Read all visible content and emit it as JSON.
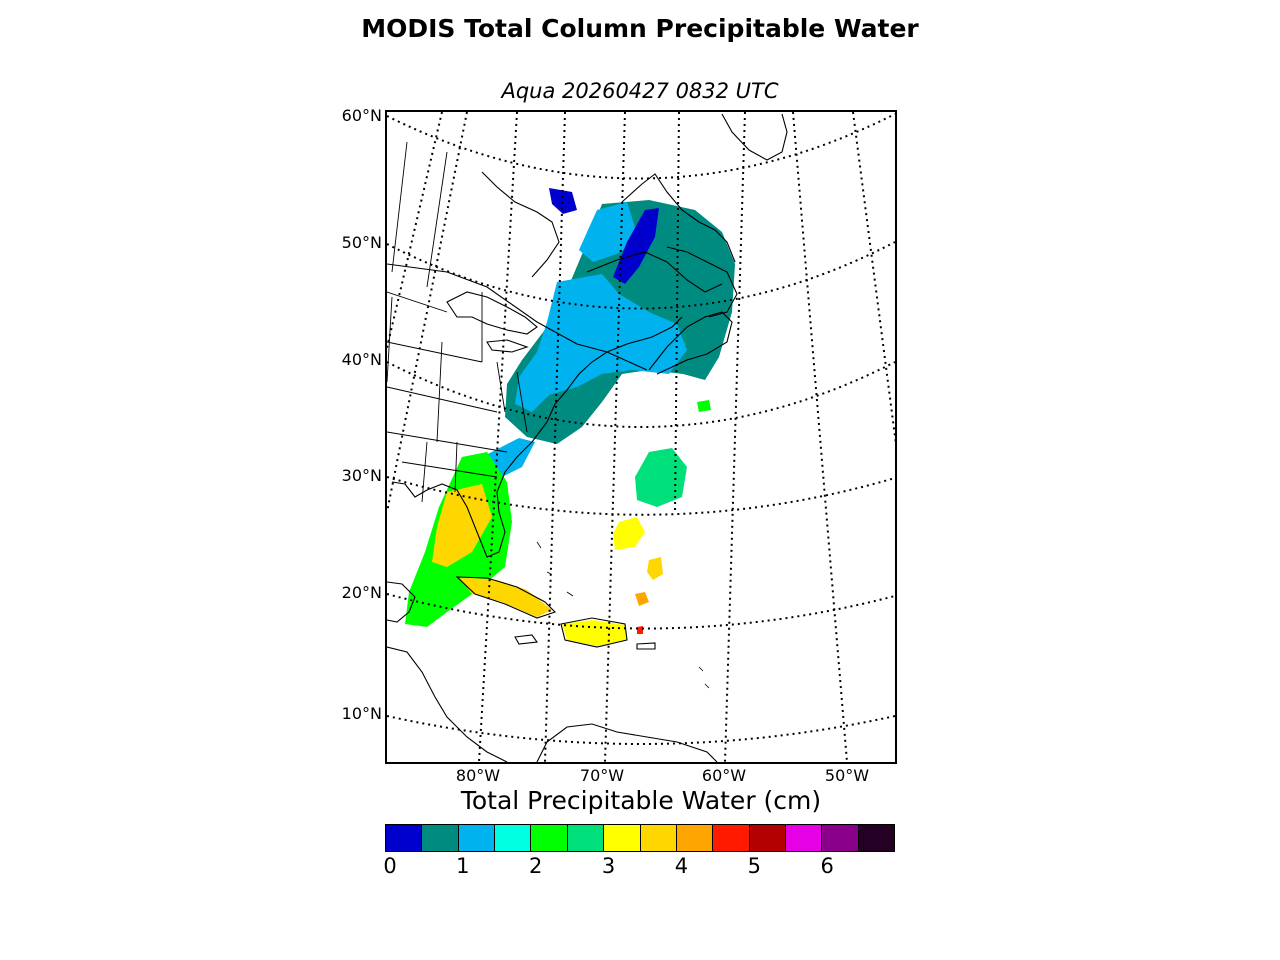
{
  "title": "MODIS Total Column Precipitable Water",
  "subtitle": "Aqua 20260427 0832 UTC",
  "map": {
    "lat_labels": [
      "60°N",
      "50°N",
      "40°N",
      "30°N",
      "20°N",
      "10°N"
    ],
    "lon_labels": [
      "80°W",
      "70°W",
      "60°W",
      "50°W"
    ]
  },
  "colorbar": {
    "title": "Total Precipitable Water (cm)",
    "colors": [
      "#0000cd",
      "#008b80",
      "#00b2ee",
      "#00ffe0",
      "#00ff00",
      "#00e07a",
      "#ffff00",
      "#ffd700",
      "#ffa500",
      "#ff1a00",
      "#b30000",
      "#e600e6",
      "#8b008b",
      "#250025"
    ],
    "tick_labels": [
      "0",
      "1",
      "2",
      "3",
      "4",
      "5",
      "6"
    ]
  }
}
